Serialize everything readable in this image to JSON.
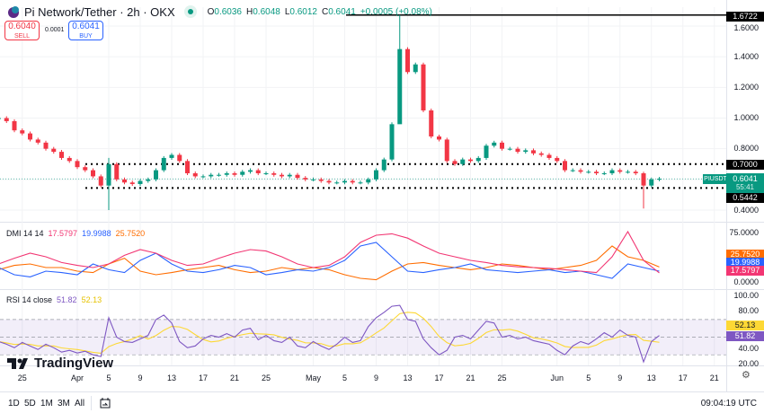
{
  "header": {
    "symbol": "Pi Network/Tether · 2h · OKX",
    "market_status": "open",
    "icon": "pi-logo-icon",
    "ohlc": {
      "o_label": "O",
      "o": "0.6036",
      "h_label": "H",
      "h": "0.6048",
      "l_label": "L",
      "l": "0.6012",
      "c_label": "C",
      "c": "0.6041",
      "change": "+0.0005 (+0.08%)"
    }
  },
  "trade": {
    "sell_price": "0.6040",
    "sell_label": "SELL",
    "spread": "0.0001",
    "buy_price": "0.6041",
    "buy_label": "BUY"
  },
  "price_axis": {
    "ticks": [
      "1.6000",
      "1.4000",
      "1.2000",
      "1.0000",
      "0.8000",
      "0.4000"
    ],
    "levels": {
      "top": "1.6722",
      "resistance": "0.7000",
      "support": "0.5442"
    },
    "current": {
      "symbol": "PIUSDT",
      "price": "0.6041",
      "countdown": "55:41"
    }
  },
  "dmi": {
    "label": "DMI 14 14",
    "adx": "17.5797",
    "plus_di": "19.9988",
    "minus_di": "25.7520",
    "ticks": [
      "75.0000",
      "0.0000"
    ],
    "colors": {
      "adx": "#f23673",
      "plus_di": "#2962ff",
      "minus_di": "#ff6d00"
    }
  },
  "rsi": {
    "label": "RSI 14 close",
    "value": "51.82",
    "ma": "52.13",
    "ticks": [
      "100.00",
      "80.00",
      "40.00",
      "20.00"
    ],
    "colors": {
      "rsi": "#7e57c2",
      "ma": "#fdd835"
    }
  },
  "x_axis": {
    "ticks": [
      [
        "25",
        "03-25"
      ],
      [
        "Apr",
        "04-01"
      ],
      [
        "5",
        "04-05"
      ],
      [
        "9",
        "04-09"
      ],
      [
        "13",
        "04-13"
      ],
      [
        "17",
        "04-17"
      ],
      [
        "21",
        "04-21"
      ],
      [
        "25",
        "04-25"
      ],
      [
        "May",
        "05-01"
      ],
      [
        "5",
        "05-05"
      ],
      [
        "9",
        "05-09"
      ],
      [
        "13",
        "05-13"
      ],
      [
        "17",
        "05-17"
      ],
      [
        "21",
        "05-21"
      ],
      [
        "25",
        "05-25"
      ],
      [
        "Jun",
        "06-01"
      ],
      [
        "5",
        "06-05"
      ],
      [
        "9",
        "06-09"
      ],
      [
        "13",
        "06-13"
      ],
      [
        "17",
        "06-17"
      ],
      [
        "21",
        "06-21"
      ]
    ]
  },
  "bottom": {
    "ranges": [
      "1D",
      "5D",
      "1M",
      "3M",
      "All"
    ],
    "time": "09:04:19 UTC"
  },
  "brand": "TradingView",
  "colors": {
    "up": "#089981",
    "down": "#f23645"
  },
  "chart_data": {
    "type": "candlestick",
    "start": "03-22",
    "price": {
      "closes": [
        1.0,
        0.98,
        0.92,
        0.9,
        0.86,
        0.84,
        0.8,
        0.78,
        0.74,
        0.72,
        0.68,
        0.66,
        0.62,
        0.56,
        0.7,
        0.6,
        0.58,
        0.57,
        0.59,
        0.6,
        0.66,
        0.74,
        0.76,
        0.72,
        0.64,
        0.62,
        0.62,
        0.63,
        0.63,
        0.64,
        0.63,
        0.65,
        0.66,
        0.64,
        0.64,
        0.63,
        0.62,
        0.63,
        0.61,
        0.6,
        0.6,
        0.59,
        0.58,
        0.58,
        0.59,
        0.58,
        0.58,
        0.6,
        0.66,
        0.73,
        0.96,
        1.45,
        1.3,
        1.35,
        1.05,
        0.88,
        0.86,
        0.72,
        0.7,
        0.73,
        0.72,
        0.74,
        0.82,
        0.84,
        0.8,
        0.8,
        0.78,
        0.79,
        0.77,
        0.76,
        0.74,
        0.72,
        0.66,
        0.66,
        0.65,
        0.65,
        0.64,
        0.64,
        0.66,
        0.65,
        0.65,
        0.64,
        0.56,
        0.6,
        0.6041
      ],
      "extremes": [
        {
          "date": "04-05",
          "high": 0.74,
          "low": 0.4
        },
        {
          "date": "05-12",
          "high": 1.6722,
          "low": 1.1
        },
        {
          "date": "06-12",
          "high": 0.65,
          "low": 0.41
        }
      ],
      "ylim": [
        0.38,
        1.72
      ]
    },
    "dmi": {
      "step_days": 2,
      "adx": [
        30,
        38,
        45,
        40,
        32,
        28,
        25,
        30,
        42,
        50,
        45,
        35,
        28,
        30,
        38,
        45,
        50,
        48,
        40,
        30,
        25,
        28,
        40,
        60,
        70,
        72,
        66,
        55,
        45,
        40,
        35,
        32,
        28,
        26,
        25,
        24,
        22,
        20,
        18,
        40,
        75,
        35,
        17.58
      ],
      "plus_di": [
        25,
        15,
        12,
        20,
        18,
        15,
        30,
        22,
        18,
        35,
        45,
        30,
        20,
        18,
        22,
        28,
        25,
        15,
        18,
        22,
        20,
        25,
        35,
        55,
        60,
        40,
        20,
        18,
        22,
        25,
        30,
        22,
        20,
        18,
        20,
        22,
        18,
        20,
        15,
        10,
        30,
        25,
        20.0
      ],
      "minus_di": [
        22,
        28,
        30,
        25,
        25,
        20,
        18,
        30,
        38,
        20,
        15,
        18,
        22,
        25,
        28,
        22,
        18,
        20,
        25,
        22,
        25,
        22,
        15,
        10,
        8,
        20,
        30,
        32,
        28,
        25,
        22,
        25,
        30,
        28,
        25,
        22,
        25,
        28,
        35,
        55,
        40,
        35,
        25.75
      ],
      "ylim": [
        0,
        80
      ]
    },
    "rsi": {
      "values": [
        45,
        42,
        38,
        44,
        40,
        36,
        42,
        38,
        33,
        35,
        32,
        34,
        30,
        28,
        72,
        50,
        45,
        44,
        48,
        52,
        70,
        75,
        66,
        45,
        38,
        40,
        48,
        52,
        50,
        54,
        50,
        58,
        60,
        47,
        52,
        46,
        44,
        50,
        40,
        38,
        45,
        40,
        36,
        42,
        50,
        44,
        46,
        62,
        72,
        78,
        85,
        86,
        70,
        68,
        48,
        38,
        30,
        35,
        50,
        52,
        48,
        58,
        68,
        66,
        50,
        52,
        48,
        50,
        46,
        44,
        42,
        35,
        30,
        40,
        45,
        42,
        48,
        55,
        50,
        58,
        52,
        50,
        22,
        45,
        51.82
      ],
      "bands": [
        30,
        50,
        70
      ],
      "ylim": [
        0,
        100
      ]
    }
  }
}
